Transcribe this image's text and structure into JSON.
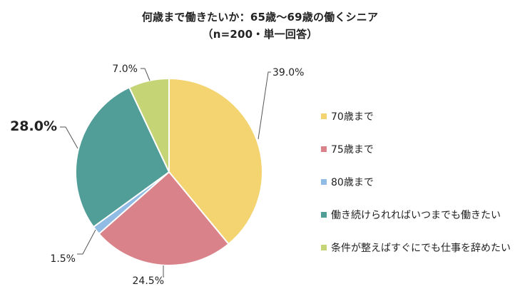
{
  "title": "何歳まで働きたいか：65歳～69歳の働くシニア",
  "subtitle": "（n=200・単一回答）",
  "colors": {
    "slice_border": "#ffffff",
    "leader_line": "#555555"
  },
  "chart_data": {
    "type": "pie",
    "title": "何歳まで働きたいか：65歳～69歳の働くシニア",
    "subtitle": "（n=200・単一回答）",
    "start_angle_deg": 0,
    "direction": "clockwise",
    "legend_position": "right",
    "slices": [
      {
        "label": "70歳まで",
        "value": 39.0,
        "value_label": "39.0%",
        "color": "#f3d470"
      },
      {
        "label": "75歳まで",
        "value": 24.5,
        "value_label": "24.5%",
        "color": "#d98289"
      },
      {
        "label": "80歳まで",
        "value": 1.5,
        "value_label": "1.5%",
        "color": "#8fbbe4"
      },
      {
        "label": "働き続けられればいつまでも働きたい",
        "value": 28.0,
        "value_label": "28.0%",
        "color": "#519d98",
        "emphasized": true
      },
      {
        "label": "条件が整えばすぐにでも仕事を辞めたい",
        "value": 7.0,
        "value_label": "7.0%",
        "color": "#c5d474"
      }
    ]
  }
}
